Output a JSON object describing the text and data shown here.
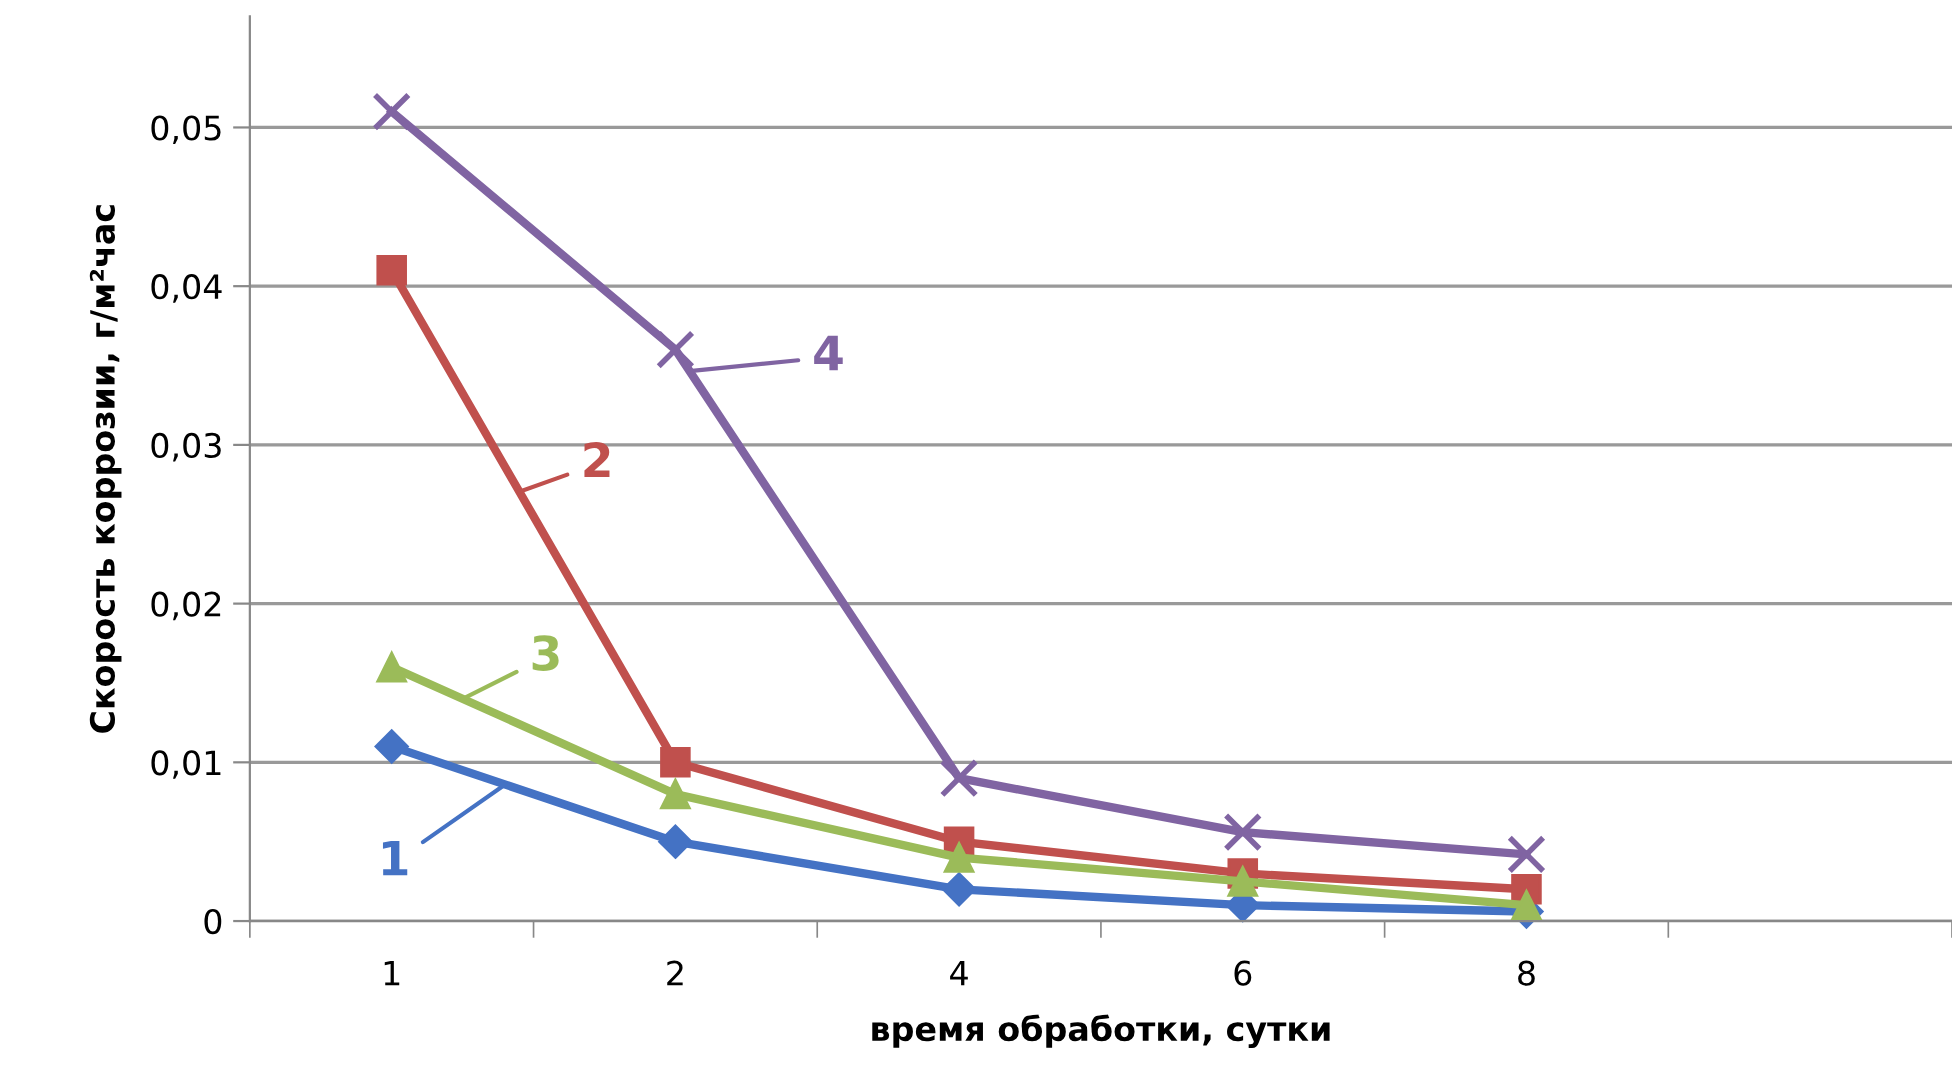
{
  "chart_data": {
    "type": "line",
    "xlabel": "время обработки, сутки",
    "ylabel": "Скорость коррозии, г/м²час",
    "categories": [
      "1",
      "2",
      "4",
      "6",
      "8",
      null
    ],
    "series": [
      {
        "name": "1",
        "color": "#4472c4",
        "marker": "diamond",
        "values": [
          0.011,
          0.005,
          0.002,
          0.001,
          0.0006,
          null
        ]
      },
      {
        "name": "2",
        "color": "#c0504d",
        "marker": "square",
        "values": [
          0.041,
          0.01,
          0.005,
          0.003,
          0.002,
          null
        ]
      },
      {
        "name": "3",
        "color": "#9bbb59",
        "marker": "triangle",
        "values": [
          0.016,
          0.008,
          0.004,
          0.0025,
          0.001,
          null
        ]
      },
      {
        "name": "4",
        "color": "#8064a2",
        "marker": "cross",
        "values": [
          0.051,
          0.036,
          0.009,
          0.0056,
          0.0042,
          null
        ]
      }
    ],
    "ylim": [
      0,
      0.057
    ],
    "yticks": [
      {
        "value": 0,
        "label": "0"
      },
      {
        "value": 0.01,
        "label": "0,01"
      },
      {
        "value": 0.02,
        "label": "0,02"
      },
      {
        "value": 0.03,
        "label": "0,03"
      },
      {
        "value": 0.04,
        "label": "0,04"
      },
      {
        "value": 0.05,
        "label": "0,05"
      }
    ],
    "grid": "y",
    "legend": "bottom left"
  }
}
